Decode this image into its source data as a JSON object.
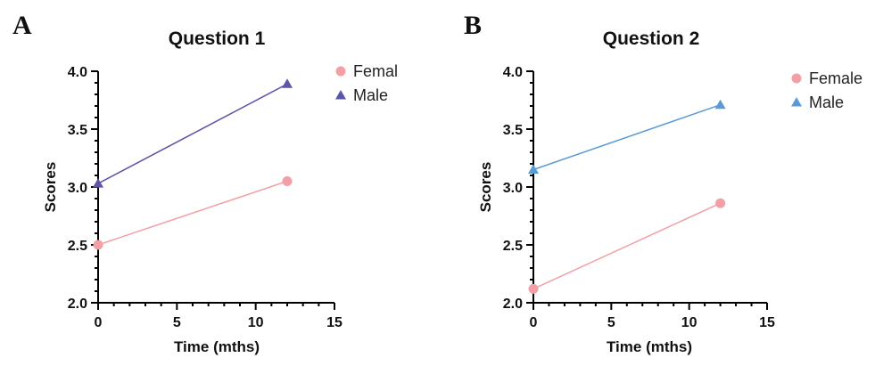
{
  "chart_data": [
    {
      "panel": "A",
      "type": "line",
      "title": "Question 1",
      "xlabel": "Time (mths)",
      "ylabel": "Scores",
      "xlim": [
        0,
        15
      ],
      "ylim": [
        2.0,
        4.0
      ],
      "x_ticks": [
        0,
        5,
        10,
        15
      ],
      "y_ticks": [
        "2.0",
        "2.5",
        "3.0",
        "3.5",
        "4.0"
      ],
      "legend_position": "top-right",
      "series": [
        {
          "name": "Femal",
          "marker": "circle",
          "color": "#f2a0a5",
          "points": [
            [
              0,
              2.5
            ],
            [
              12,
              3.05
            ]
          ]
        },
        {
          "name": "Male",
          "marker": "triangle",
          "color": "#5b56a8",
          "points": [
            [
              0,
              3.03
            ],
            [
              12,
              3.89
            ]
          ]
        }
      ]
    },
    {
      "panel": "B",
      "type": "line",
      "title": "Question 2",
      "xlabel": "Time (mths)",
      "ylabel": "Scores",
      "xlim": [
        0,
        15
      ],
      "ylim": [
        2.0,
        4.0
      ],
      "x_ticks": [
        0,
        5,
        10,
        15
      ],
      "y_ticks": [
        "2.0",
        "2.5",
        "3.0",
        "3.5",
        "4.0"
      ],
      "legend_position": "top-right",
      "series": [
        {
          "name": "Female",
          "marker": "circle",
          "color": "#f2a0a5",
          "points": [
            [
              0,
              2.12
            ],
            [
              12,
              2.86
            ]
          ]
        },
        {
          "name": "Male",
          "marker": "triangle",
          "color": "#5b9bd5",
          "points": [
            [
              0,
              3.15
            ],
            [
              12,
              3.71
            ]
          ]
        }
      ]
    }
  ]
}
